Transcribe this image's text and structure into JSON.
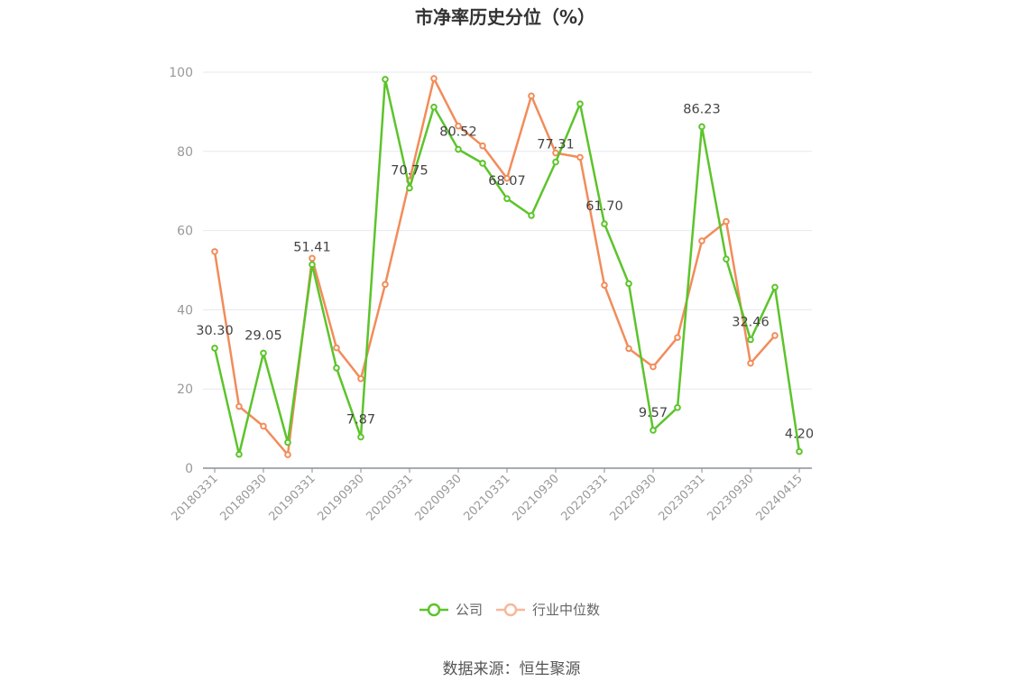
{
  "chart_data": {
    "type": "line",
    "title": "市净率历史分位（%）",
    "xlabel": "",
    "ylabel": "",
    "ylim": [
      0,
      100
    ],
    "yticks": [
      0,
      20,
      40,
      60,
      80,
      100
    ],
    "x": [
      "20180331",
      "20180630",
      "20180930",
      "20181231",
      "20190331",
      "20190630",
      "20190930",
      "20191231",
      "20200331",
      "20200630",
      "20200930",
      "20201231",
      "20210331",
      "20210630",
      "20210930",
      "20211231",
      "20220331",
      "20220630",
      "20220930",
      "20221231",
      "20230331",
      "20230630",
      "20230930",
      "20231231",
      "20240415"
    ],
    "xtick_labels": [
      "20180331",
      "20180930",
      "20190331",
      "20190930",
      "20200331",
      "20200930",
      "20210331",
      "20210930",
      "20220331",
      "20220930",
      "20230331",
      "20230930",
      "20240415"
    ],
    "xtick_index": [
      0,
      2,
      4,
      6,
      8,
      10,
      12,
      14,
      16,
      18,
      20,
      22,
      24
    ],
    "series": [
      {
        "name": "公司",
        "color": "#5cc42b",
        "values": [
          30.3,
          3.5,
          29.05,
          6.5,
          51.41,
          25.3,
          7.87,
          98.2,
          70.75,
          91.2,
          80.52,
          77.0,
          68.07,
          63.8,
          77.31,
          92.0,
          61.7,
          46.6,
          9.57,
          15.3,
          86.23,
          52.8,
          32.46,
          45.7,
          4.2
        ]
      },
      {
        "name": "行业中位数",
        "color": "#f28c5a",
        "values": [
          54.7,
          15.6,
          10.6,
          3.4,
          53.0,
          30.4,
          22.6,
          46.4,
          72.6,
          98.4,
          86.4,
          81.4,
          73.2,
          94.0,
          79.6,
          78.5,
          46.2,
          30.2,
          25.6,
          33.0,
          57.4,
          62.3,
          26.5,
          33.5,
          null
        ]
      }
    ],
    "data_labels": [
      {
        "index": 0,
        "text": "30.30"
      },
      {
        "index": 2,
        "text": "29.05"
      },
      {
        "index": 4,
        "text": "51.41"
      },
      {
        "index": 6,
        "text": "7.87"
      },
      {
        "index": 8,
        "text": "70.75"
      },
      {
        "index": 10,
        "text": "80.52"
      },
      {
        "index": 12,
        "text": "68.07"
      },
      {
        "index": 14,
        "text": "77.31"
      },
      {
        "index": 16,
        "text": "61.70"
      },
      {
        "index": 18,
        "text": "9.57"
      },
      {
        "index": 20,
        "text": "86.23"
      },
      {
        "index": 22,
        "text": "32.46"
      },
      {
        "index": 24,
        "text": "4.20"
      }
    ],
    "legend_position": "bottom-center",
    "grid": true
  },
  "source_text": "数据来源：恒生聚源"
}
